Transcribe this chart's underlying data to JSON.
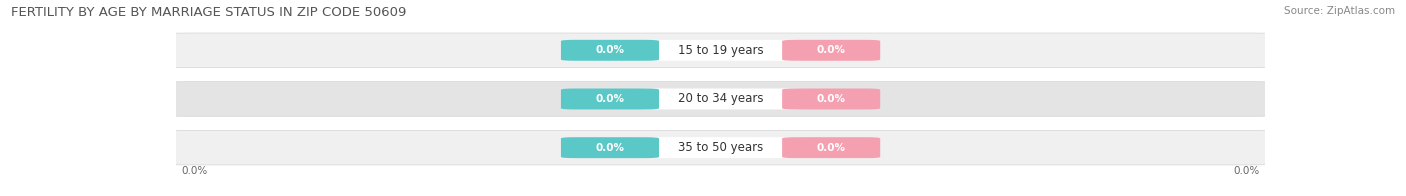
{
  "title": "FERTILITY BY AGE BY MARRIAGE STATUS IN ZIP CODE 50609",
  "source": "Source: ZipAtlas.com",
  "age_groups": [
    "15 to 19 years",
    "20 to 34 years",
    "35 to 50 years"
  ],
  "married_values": [
    0.0,
    0.0,
    0.0
  ],
  "unmarried_values": [
    0.0,
    0.0,
    0.0
  ],
  "married_color": "#5bc8c8",
  "unmarried_color": "#f4a0b0",
  "row_bg_even": "#f0f0f0",
  "row_bg_odd": "#e4e4e4",
  "title_fontsize": 9.5,
  "source_fontsize": 7.5,
  "label_fontsize": 8.5,
  "value_fontsize": 7.5,
  "background_color": "#ffffff",
  "axis_label_left": "0.0%",
  "axis_label_right": "0.0%"
}
